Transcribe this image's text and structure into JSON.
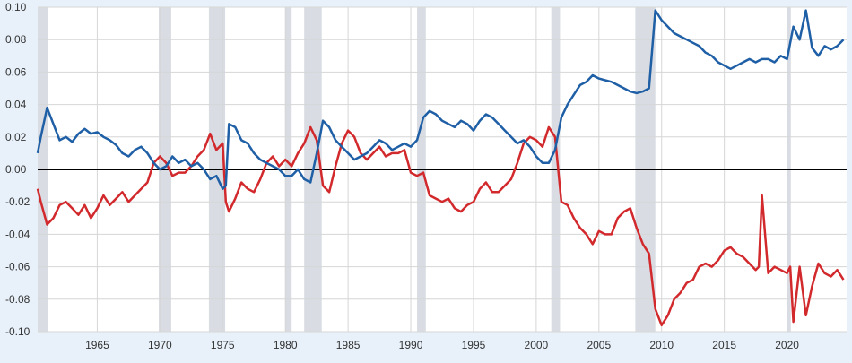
{
  "chart_data": {
    "type": "line",
    "title": "",
    "xlabel": "",
    "ylabel": "",
    "xlim": [
      1960.25,
      2024.75
    ],
    "ylim": [
      -0.1,
      0.1
    ],
    "x_ticks": [
      1965,
      1970,
      1975,
      1980,
      1985,
      1990,
      1995,
      2000,
      2005,
      2010,
      2015,
      2020
    ],
    "y_ticks": [
      0.1,
      0.08,
      0.06,
      0.04,
      0.02,
      0.0,
      -0.02,
      -0.04,
      -0.06,
      -0.08,
      -0.1
    ],
    "y_tick_labels": [
      "0.10",
      "0.08",
      "0.06",
      "0.04",
      "0.02",
      "0.00",
      "-0.02",
      "-0.04",
      "-0.06",
      "-0.08",
      "-0.10"
    ],
    "grid": true,
    "zero_line": 0.0,
    "recessions": [
      [
        1960.25,
        1961.1
      ],
      [
        1969.9,
        1970.9
      ],
      [
        1973.9,
        1975.2
      ],
      [
        1980.0,
        1980.5
      ],
      [
        1981.5,
        1982.9
      ],
      [
        1990.5,
        1991.2
      ],
      [
        2001.2,
        2001.9
      ],
      [
        2007.9,
        2009.5
      ],
      [
        2020.0,
        2020.3
      ]
    ],
    "colors": {
      "blue": "#1f5fa6",
      "red": "#d2292d",
      "recession": "#d9dde3",
      "grid": "#d6d6d6",
      "zero": "#000000",
      "background": "#ffffff",
      "page": "#e8f1fa"
    },
    "series": [
      {
        "name": "blue",
        "x": [
          1960.25,
          1960.5,
          1961.0,
          1961.5,
          1962.0,
          1962.5,
          1963.0,
          1963.5,
          1964.0,
          1964.5,
          1965.0,
          1965.5,
          1966.0,
          1966.5,
          1967.0,
          1967.5,
          1968.0,
          1968.5,
          1969.0,
          1969.5,
          1970.0,
          1970.5,
          1971.0,
          1971.5,
          1972.0,
          1972.5,
          1973.0,
          1973.5,
          1974.0,
          1974.5,
          1975.0,
          1975.25,
          1975.5,
          1976.0,
          1976.5,
          1977.0,
          1977.5,
          1978.0,
          1978.5,
          1979.0,
          1979.5,
          1980.0,
          1980.5,
          1981.0,
          1981.5,
          1982.0,
          1982.5,
          1983.0,
          1983.5,
          1984.0,
          1984.5,
          1985.0,
          1985.5,
          1986.0,
          1986.5,
          1987.0,
          1987.5,
          1988.0,
          1988.5,
          1989.0,
          1989.5,
          1990.0,
          1990.5,
          1991.0,
          1991.5,
          1992.0,
          1992.5,
          1993.0,
          1993.5,
          1994.0,
          1994.5,
          1995.0,
          1995.5,
          1996.0,
          1996.5,
          1997.0,
          1997.5,
          1998.0,
          1998.5,
          1999.0,
          1999.5,
          2000.0,
          2000.5,
          2001.0,
          2001.5,
          2002.0,
          2002.5,
          2003.0,
          2003.5,
          2004.0,
          2004.5,
          2005.0,
          2005.5,
          2006.0,
          2006.5,
          2007.0,
          2007.5,
          2008.0,
          2008.5,
          2009.0,
          2009.5,
          2010.0,
          2010.5,
          2011.0,
          2011.5,
          2012.0,
          2012.5,
          2013.0,
          2013.5,
          2014.0,
          2014.5,
          2015.0,
          2015.5,
          2016.0,
          2016.5,
          2017.0,
          2017.5,
          2018.0,
          2018.5,
          2019.0,
          2019.5,
          2020.0,
          2020.5,
          2021.0,
          2021.5,
          2022.0,
          2022.5,
          2023.0,
          2023.5,
          2024.0,
          2024.5
        ],
        "y": [
          0.01,
          0.02,
          0.038,
          0.028,
          0.018,
          0.02,
          0.017,
          0.022,
          0.025,
          0.022,
          0.023,
          0.02,
          0.018,
          0.015,
          0.01,
          0.008,
          0.012,
          0.014,
          0.01,
          0.004,
          0.0,
          0.002,
          0.008,
          0.004,
          0.006,
          0.002,
          0.004,
          0.0,
          -0.006,
          -0.004,
          -0.012,
          -0.01,
          0.028,
          0.026,
          0.018,
          0.016,
          0.01,
          0.006,
          0.004,
          0.002,
          0.0,
          -0.004,
          -0.004,
          0.0,
          -0.006,
          -0.008,
          0.01,
          0.03,
          0.026,
          0.018,
          0.014,
          0.01,
          0.006,
          0.008,
          0.01,
          0.014,
          0.018,
          0.016,
          0.012,
          0.014,
          0.016,
          0.014,
          0.018,
          0.032,
          0.036,
          0.034,
          0.03,
          0.028,
          0.026,
          0.03,
          0.028,
          0.024,
          0.03,
          0.034,
          0.032,
          0.028,
          0.024,
          0.02,
          0.016,
          0.018,
          0.014,
          0.008,
          0.004,
          0.004,
          0.012,
          0.032,
          0.04,
          0.046,
          0.052,
          0.054,
          0.058,
          0.056,
          0.055,
          0.054,
          0.052,
          0.05,
          0.048,
          0.047,
          0.048,
          0.05,
          0.098,
          0.092,
          0.088,
          0.084,
          0.082,
          0.08,
          0.078,
          0.076,
          0.072,
          0.07,
          0.066,
          0.064,
          0.062,
          0.064,
          0.066,
          0.068,
          0.066,
          0.068,
          0.068,
          0.066,
          0.07,
          0.068,
          0.088,
          0.08,
          0.098,
          0.075,
          0.07,
          0.076,
          0.074,
          0.076,
          0.08
        ]
      },
      {
        "name": "red",
        "x": [
          1960.25,
          1960.5,
          1961.0,
          1961.5,
          1962.0,
          1962.5,
          1963.0,
          1963.5,
          1964.0,
          1964.5,
          1965.0,
          1965.5,
          1966.0,
          1966.5,
          1967.0,
          1967.5,
          1968.0,
          1968.5,
          1969.0,
          1969.5,
          1970.0,
          1970.5,
          1971.0,
          1971.5,
          1972.0,
          1972.5,
          1973.0,
          1973.5,
          1974.0,
          1974.5,
          1975.0,
          1975.25,
          1975.5,
          1976.0,
          1976.5,
          1977.0,
          1977.5,
          1978.0,
          1978.5,
          1979.0,
          1979.5,
          1980.0,
          1980.5,
          1981.0,
          1981.5,
          1982.0,
          1982.5,
          1983.0,
          1983.5,
          1984.0,
          1984.5,
          1985.0,
          1985.5,
          1986.0,
          1986.5,
          1987.0,
          1987.5,
          1988.0,
          1988.5,
          1989.0,
          1989.5,
          1990.0,
          1990.5,
          1991.0,
          1991.5,
          1992.0,
          1992.5,
          1993.0,
          1993.5,
          1994.0,
          1994.5,
          1995.0,
          1995.5,
          1996.0,
          1996.5,
          1997.0,
          1997.5,
          1998.0,
          1998.5,
          1999.0,
          1999.5,
          2000.0,
          2000.5,
          2001.0,
          2001.5,
          2002.0,
          2002.5,
          2003.0,
          2003.5,
          2004.0,
          2004.5,
          2005.0,
          2005.5,
          2006.0,
          2006.5,
          2007.0,
          2007.5,
          2008.0,
          2008.5,
          2009.0,
          2009.5,
          2010.0,
          2010.5,
          2011.0,
          2011.5,
          2012.0,
          2012.5,
          2013.0,
          2013.5,
          2014.0,
          2014.5,
          2015.0,
          2015.5,
          2016.0,
          2016.5,
          2017.0,
          2017.5,
          2017.75,
          2018.0,
          2018.5,
          2019.0,
          2019.5,
          2020.0,
          2020.25,
          2020.5,
          2021.0,
          2021.5,
          2022.0,
          2022.5,
          2023.0,
          2023.5,
          2024.0,
          2024.5
        ],
        "y": [
          -0.012,
          -0.02,
          -0.034,
          -0.03,
          -0.022,
          -0.02,
          -0.024,
          -0.028,
          -0.022,
          -0.03,
          -0.024,
          -0.016,
          -0.022,
          -0.018,
          -0.014,
          -0.02,
          -0.016,
          -0.012,
          -0.008,
          0.004,
          0.008,
          0.004,
          -0.004,
          -0.002,
          -0.002,
          0.002,
          0.008,
          0.012,
          0.022,
          0.012,
          0.016,
          -0.02,
          -0.026,
          -0.018,
          -0.008,
          -0.012,
          -0.014,
          -0.006,
          0.004,
          0.008,
          0.002,
          0.006,
          0.002,
          0.01,
          0.016,
          0.026,
          0.018,
          -0.01,
          -0.014,
          0.002,
          0.016,
          0.024,
          0.02,
          0.01,
          0.006,
          0.01,
          0.014,
          0.008,
          0.01,
          0.01,
          0.012,
          -0.002,
          -0.004,
          -0.002,
          -0.016,
          -0.018,
          -0.02,
          -0.018,
          -0.024,
          -0.026,
          -0.022,
          -0.02,
          -0.012,
          -0.008,
          -0.014,
          -0.014,
          -0.01,
          -0.006,
          0.004,
          0.016,
          0.02,
          0.018,
          0.014,
          0.026,
          0.02,
          -0.02,
          -0.022,
          -0.03,
          -0.036,
          -0.04,
          -0.046,
          -0.038,
          -0.04,
          -0.04,
          -0.03,
          -0.026,
          -0.024,
          -0.036,
          -0.046,
          -0.052,
          -0.086,
          -0.096,
          -0.09,
          -0.08,
          -0.076,
          -0.07,
          -0.068,
          -0.06,
          -0.058,
          -0.06,
          -0.056,
          -0.05,
          -0.048,
          -0.052,
          -0.054,
          -0.058,
          -0.062,
          -0.06,
          -0.016,
          -0.064,
          -0.06,
          -0.062,
          -0.064,
          -0.06,
          -0.094,
          -0.06,
          -0.09,
          -0.072,
          -0.058,
          -0.064,
          -0.066,
          -0.062,
          -0.068
        ]
      }
    ]
  }
}
